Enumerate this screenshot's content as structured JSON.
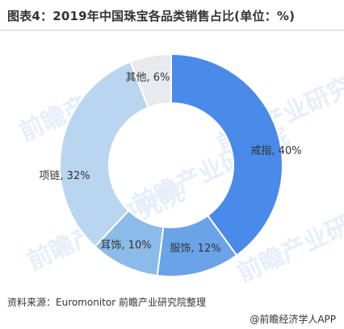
{
  "title": "图表4：2019年中国珠宝各品类销售占比(单位：%)",
  "source": "资料来源：Euromonitor  前瞻产业研究院整理",
  "credit": "@前瞻经济学人APP",
  "watermark": "前瞻产业研究院",
  "chart_data": {
    "type": "pie",
    "donut": true,
    "slices": [
      {
        "label": "戒指, 40%",
        "category": "戒指",
        "value": 40,
        "color": "#4a8ae8"
      },
      {
        "label": "服饰, 12%",
        "category": "服饰",
        "value": 12,
        "color": "#6aa3e8"
      },
      {
        "label": "耳饰, 10%",
        "category": "耳饰",
        "value": 10,
        "color": "#8bbbe9"
      },
      {
        "label": "项链, 32%",
        "category": "项链",
        "value": 32,
        "color": "#bad5ef"
      },
      {
        "label": "其他, 6%",
        "category": "其他",
        "value": 6,
        "color": "#e7ebef"
      }
    ],
    "start": "12 o'clock",
    "direction": "clockwise",
    "unit": "%"
  }
}
